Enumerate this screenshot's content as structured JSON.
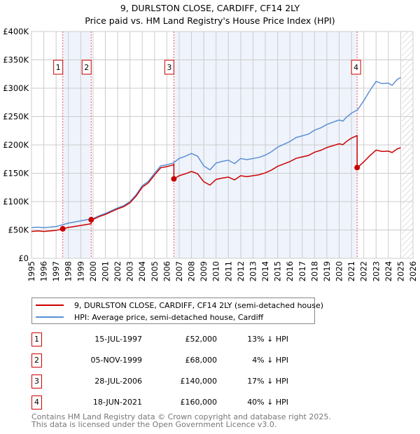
{
  "title": "9, DURLSTON CLOSE, CARDIFF, CF14 2LY",
  "subtitle": "Price paid vs. HM Land Registry's House Price Index (HPI)",
  "chart_data": {
    "type": "line",
    "title": "9, DURLSTON CLOSE, CARDIFF, CF14 2LY",
    "ylim": [
      0,
      400000
    ],
    "xlim": [
      1995,
      2026
    ],
    "y_ticks": [
      0,
      50000,
      100000,
      150000,
      200000,
      250000,
      300000,
      350000,
      400000
    ],
    "y_tick_labels": [
      "£0",
      "£50K",
      "£100K",
      "£150K",
      "£200K",
      "£250K",
      "£300K",
      "£350K",
      "£400K"
    ],
    "x_ticks": [
      "1995",
      "1996",
      "1997",
      "1998",
      "1999",
      "2000",
      "2001",
      "2002",
      "2003",
      "2004",
      "2005",
      "2006",
      "2007",
      "2008",
      "2009",
      "2010",
      "2011",
      "2012",
      "2013",
      "2014",
      "2015",
      "2016",
      "2017",
      "2018",
      "2019",
      "2020",
      "2021",
      "2022",
      "2023",
      "2024",
      "2025",
      "2026"
    ],
    "grid": true,
    "future_hatch_from": 2025.1,
    "colors": {
      "property": "#cc0000",
      "hpi": "#5b8fd4",
      "shade": "#eef3fc"
    },
    "hpi_series": {
      "x": [
        1995,
        1995.5,
        1996,
        1996.5,
        1997,
        1997.5,
        1998,
        1998.5,
        1999,
        1999.5,
        2000,
        2000.5,
        2001,
        2001.5,
        2002,
        2002.5,
        2003,
        2003.5,
        2004,
        2004.5,
        2005,
        2005.5,
        2006,
        2006.5,
        2007,
        2007.5,
        2008,
        2008.5,
        2009,
        2009.5,
        2010,
        2010.5,
        2011,
        2011.5,
        2012,
        2012.5,
        2013,
        2013.5,
        2014,
        2014.5,
        2015,
        2015.5,
        2016,
        2016.5,
        2017,
        2017.5,
        2018,
        2018.5,
        2019,
        2019.5,
        2020,
        2020.3,
        2020.6,
        2021,
        2021.5,
        2022,
        2022.5,
        2023,
        2023.5,
        2024,
        2024.3,
        2024.7,
        2025
      ],
      "y": [
        54000,
        55000,
        54000,
        55000,
        56000,
        59000,
        62000,
        64000,
        66000,
        68000,
        70000,
        75000,
        79000,
        84000,
        89000,
        93000,
        100000,
        112000,
        128000,
        136000,
        150000,
        163000,
        165000,
        168000,
        176000,
        180000,
        185000,
        180000,
        163000,
        156000,
        168000,
        171000,
        173000,
        167000,
        176000,
        174000,
        176000,
        178000,
        182000,
        188000,
        196000,
        201000,
        206000,
        213000,
        216000,
        219000,
        226000,
        230000,
        236000,
        240000,
        244000,
        242000,
        249000,
        256000,
        262000,
        278000,
        296000,
        312000,
        308000,
        309000,
        305000,
        315000,
        319000
      ]
    },
    "sales": [
      {
        "n": "1",
        "x": 1997.54,
        "date": "15-JUL-1997",
        "price": 52000,
        "price_label": "£52,000",
        "hpi_label": "13% ↓ HPI"
      },
      {
        "n": "2",
        "x": 1999.85,
        "date": "05-NOV-1999",
        "price": 68000,
        "price_label": "£68,000",
        "hpi_label": "4% ↓ HPI"
      },
      {
        "n": "3",
        "x": 2006.57,
        "date": "28-JUL-2006",
        "price": 140000,
        "price_label": "£140,000",
        "hpi_label": "17% ↓ HPI"
      },
      {
        "n": "4",
        "x": 2021.46,
        "date": "18-JUN-2021",
        "price": 160000,
        "price_label": "£160,000",
        "hpi_label": "40% ↓ HPI"
      }
    ],
    "legend": {
      "placement": "below",
      "property": "9, DURLSTON CLOSE, CARDIFF, CF14 2LY (semi-detached house)",
      "hpi": "HPI: Average price, semi-detached house, Cardiff"
    }
  },
  "footer": {
    "line1": "Contains HM Land Registry data © Crown copyright and database right 2025.",
    "line2": "This data is licensed under the Open Government Licence v3.0."
  }
}
